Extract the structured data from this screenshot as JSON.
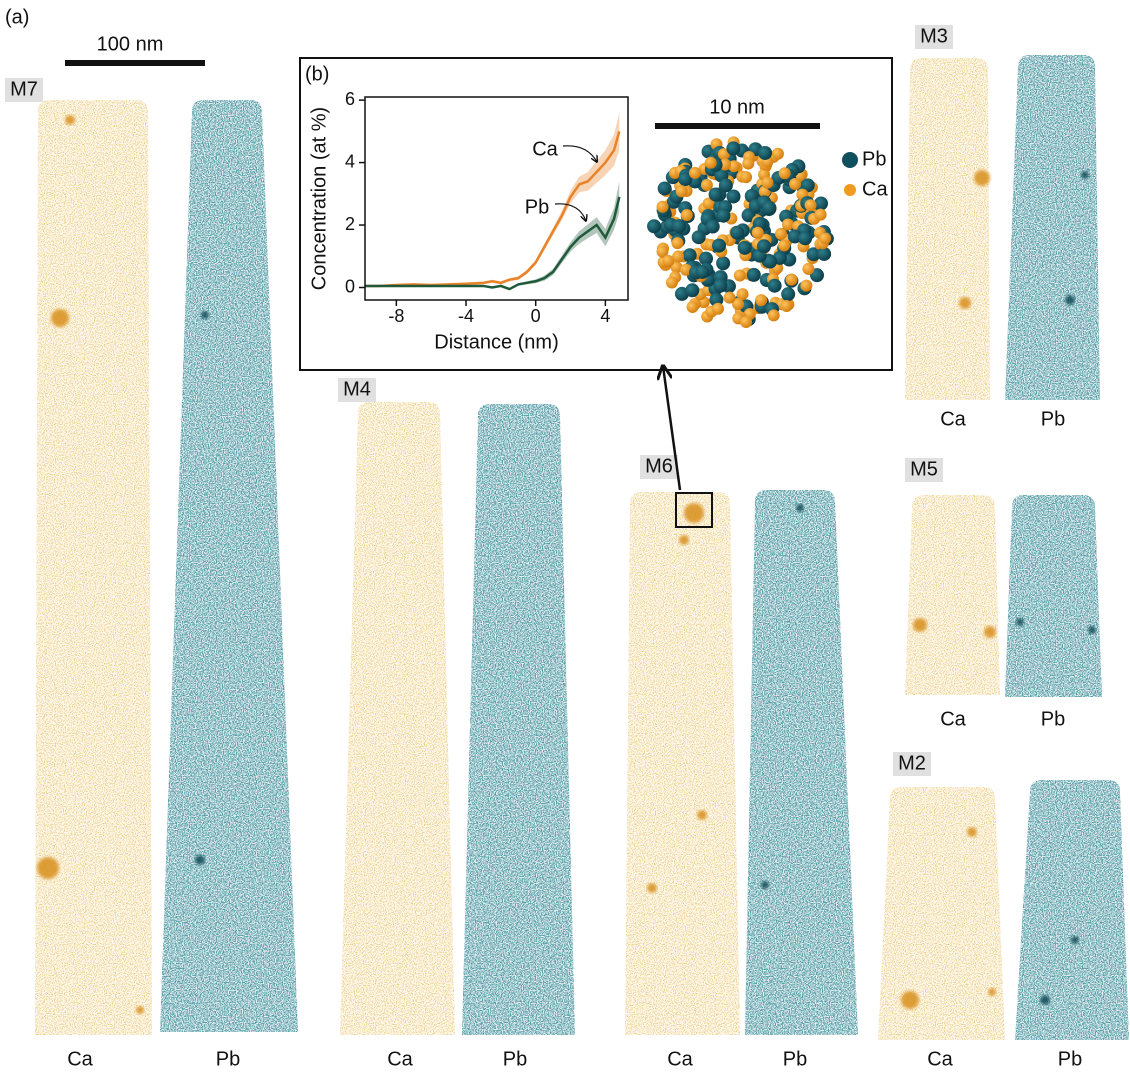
{
  "figure_label": "(a)",
  "scale_bar": "100 nm",
  "samples": [
    {
      "label": "M7",
      "columns": [
        "Ca",
        "Pb"
      ]
    },
    {
      "label": "M4",
      "columns": [
        "Ca",
        "Pb"
      ]
    },
    {
      "label": "M6",
      "columns": [
        "Ca",
        "Pb"
      ]
    },
    {
      "label": "M3",
      "columns": [
        "Ca",
        "Pb"
      ]
    },
    {
      "label": "M5",
      "columns": [
        "Ca",
        "Pb"
      ]
    },
    {
      "label": "M2",
      "columns": [
        "Ca",
        "Pb"
      ]
    }
  ],
  "inset": {
    "panel_label": "(b)",
    "scale_bar": "10 nm",
    "legend": [
      {
        "label": "Pb",
        "color": "#0f4f5e"
      },
      {
        "label": "Ca",
        "color": "#f29a1f"
      }
    ]
  },
  "chart_data": {
    "type": "line",
    "x_label": "Distance (nm)",
    "y_label": "Concentration (at %)",
    "x": [
      -9.8,
      -9,
      -8,
      -7,
      -6,
      -5,
      -4,
      -3,
      -2.5,
      -2,
      -1.5,
      -1,
      -0.5,
      0,
      0.5,
      1,
      1.5,
      2,
      2.5,
      3,
      3.5,
      4,
      4.5,
      4.8
    ],
    "series": [
      {
        "name": "Ca",
        "color": "#e8832a",
        "values": [
          0.05,
          0.05,
          0.08,
          0.1,
          0.08,
          0.1,
          0.12,
          0.15,
          0.2,
          0.15,
          0.25,
          0.3,
          0.5,
          0.8,
          1.3,
          1.8,
          2.3,
          2.9,
          3.3,
          3.4,
          3.7,
          4.0,
          4.4,
          5.0
        ],
        "errors": [
          0.03,
          0.03,
          0.03,
          0.03,
          0.03,
          0.03,
          0.04,
          0.04,
          0.05,
          0.05,
          0.05,
          0.06,
          0.07,
          0.08,
          0.1,
          0.12,
          0.15,
          0.2,
          0.25,
          0.3,
          0.35,
          0.4,
          0.5,
          0.6
        ]
      },
      {
        "name": "Pb",
        "color": "#1f5a3a",
        "values": [
          0.05,
          0.05,
          0.05,
          0.05,
          0.05,
          0.05,
          0.05,
          0.05,
          0.0,
          0.05,
          -0.05,
          0.1,
          0.15,
          0.2,
          0.3,
          0.5,
          0.9,
          1.3,
          1.6,
          1.8,
          2.0,
          1.6,
          2.2,
          2.9
        ],
        "errors": [
          0.03,
          0.03,
          0.03,
          0.03,
          0.03,
          0.03,
          0.03,
          0.03,
          0.03,
          0.03,
          0.03,
          0.04,
          0.05,
          0.06,
          0.08,
          0.1,
          0.12,
          0.15,
          0.2,
          0.22,
          0.25,
          0.28,
          0.35,
          0.5
        ]
      }
    ],
    "xlim": [
      -9.8,
      5.3
    ],
    "ylim": [
      -0.4,
      6.1
    ],
    "xticks": [
      -8,
      -4,
      0,
      4
    ],
    "yticks": [
      0,
      2,
      4,
      6
    ]
  }
}
